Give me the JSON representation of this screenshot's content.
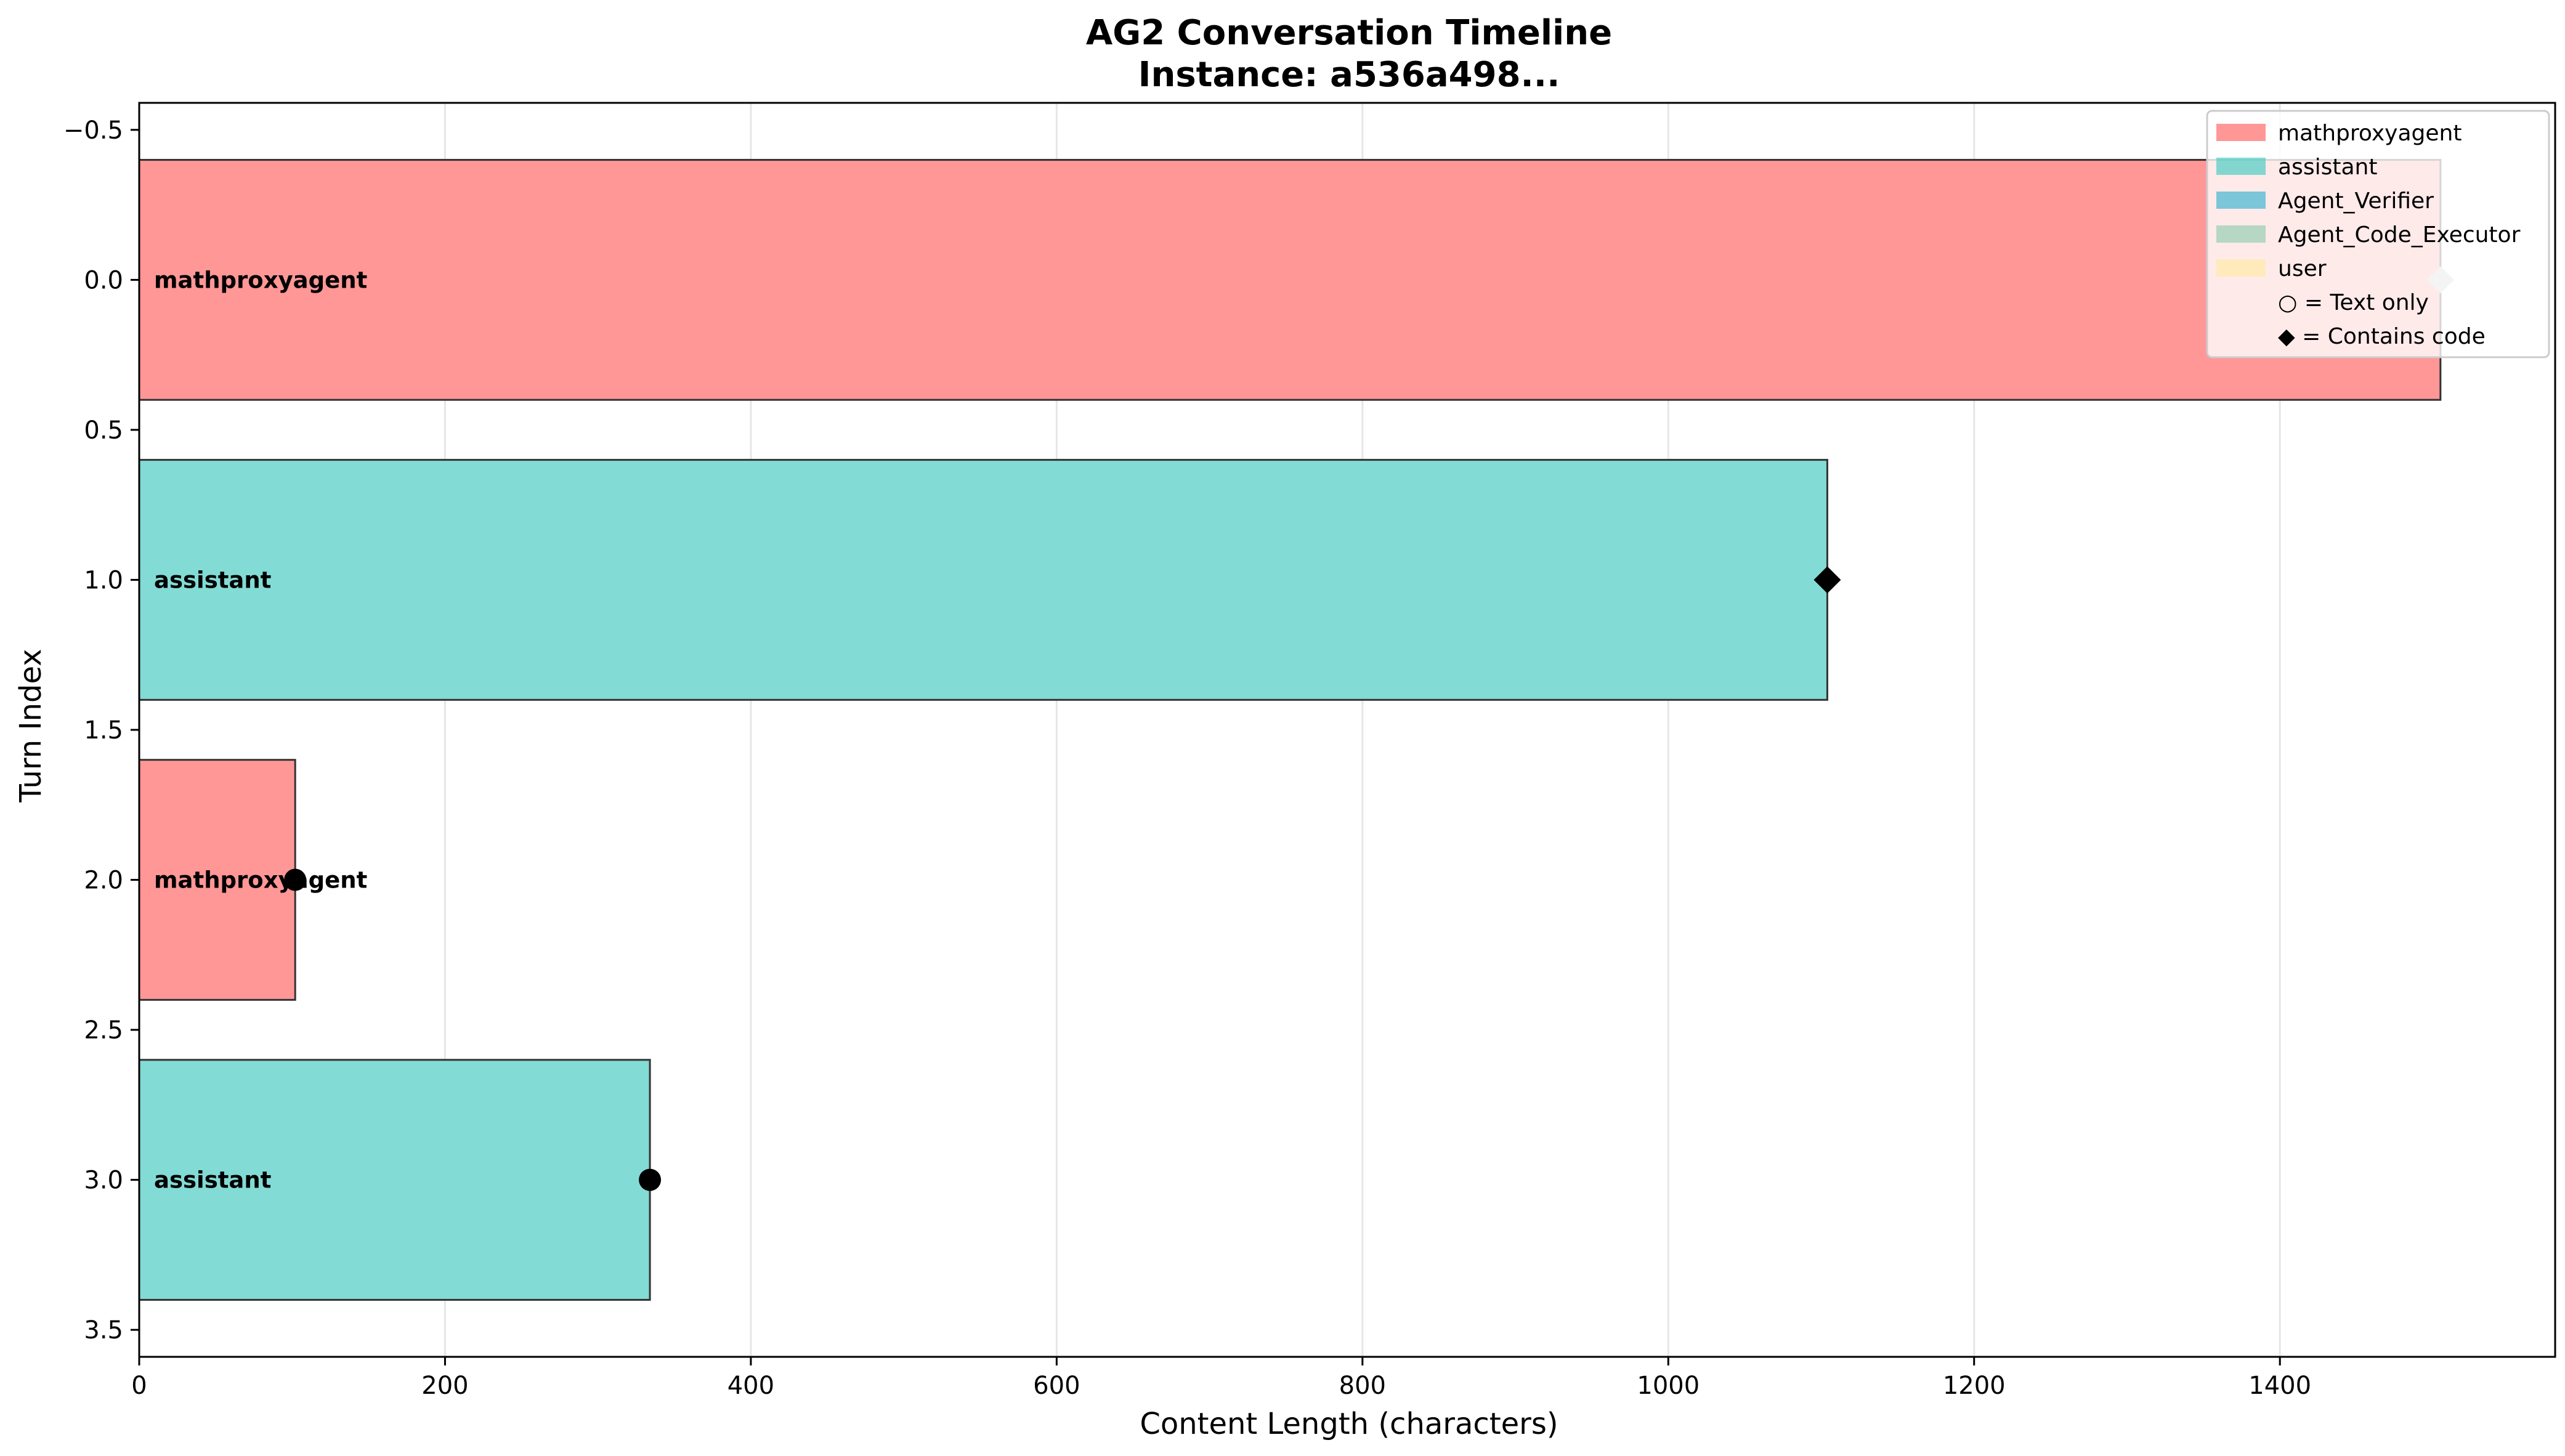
{
  "chart_data": {
    "type": "bar",
    "orientation": "horizontal",
    "title": "AG2 Conversation Timeline",
    "subtitle": "Instance: a536a498...",
    "xlabel": "Content Length (characters)",
    "ylabel": "Turn Index",
    "xlim": [
      0,
      1580
    ],
    "ylim": [
      3.59,
      -0.59
    ],
    "x_ticks": [
      0,
      200,
      400,
      600,
      800,
      1000,
      1200,
      1400
    ],
    "x_tick_labels": [
      "0",
      "200",
      "400",
      "600",
      "800",
      "1000",
      "1200",
      "1400"
    ],
    "y_ticks": [
      -0.5,
      0.0,
      0.5,
      1.0,
      1.5,
      2.0,
      2.5,
      3.0,
      3.5
    ],
    "y_tick_labels": [
      "−0.5",
      "0.0",
      "0.5",
      "1.0",
      "1.5",
      "2.0",
      "2.5",
      "3.0",
      "3.5"
    ],
    "grid": "x",
    "bar_height": 0.8,
    "turns": [
      {
        "turn": 0,
        "agent": "mathproxyagent",
        "label": "mathproxyagent",
        "length": 1505,
        "marker": "diamond",
        "marker_color": "#c8c8c8"
      },
      {
        "turn": 1,
        "agent": "assistant",
        "label": "assistant",
        "length": 1104,
        "marker": "diamond",
        "marker_color": "#000000"
      },
      {
        "turn": 2,
        "agent": "mathproxyagent",
        "label": "mathproxyagent",
        "length": 102,
        "marker": "circle",
        "marker_color": "#000000"
      },
      {
        "turn": 3,
        "agent": "assistant",
        "label": "assistant",
        "length": 334,
        "marker": "circle",
        "marker_color": "#000000"
      }
    ],
    "legend": {
      "placement": "top-right",
      "entries": [
        {
          "label": "mathproxyagent",
          "color": "#FF6B6B"
        },
        {
          "label": "assistant",
          "color": "#4ECDC4"
        },
        {
          "label": "Agent_Verifier",
          "color": "#45B7D1"
        },
        {
          "label": "Agent_Code_Executor",
          "color": "#96CEB4"
        },
        {
          "label": "user",
          "color": "#FFEAA7"
        }
      ],
      "notes": [
        "○ = Text only",
        "◆ = Contains code"
      ]
    },
    "agent_colors": {
      "mathproxyagent": "#FF9796",
      "assistant": "#83DBD5"
    }
  }
}
